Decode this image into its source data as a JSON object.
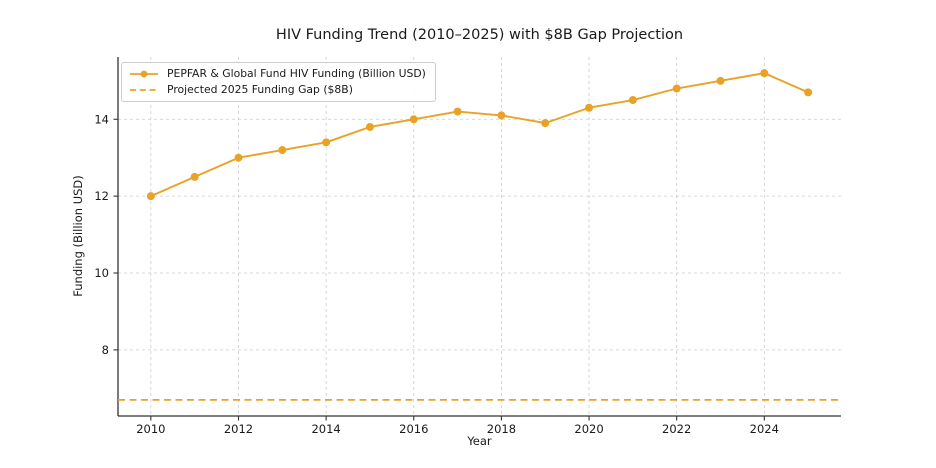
{
  "chart_data": {
    "type": "line",
    "title": "HIV Funding Trend (2010–2025) with $8B Gap Projection",
    "xlabel": "Year",
    "ylabel": "Funding (Billion USD)",
    "x": [
      2010,
      2011,
      2012,
      2013,
      2014,
      2015,
      2016,
      2017,
      2018,
      2019,
      2020,
      2021,
      2022,
      2023,
      2024,
      2025
    ],
    "series": [
      {
        "name": "PEPFAR & Global Fund HIV Funding (Billion USD)",
        "values": [
          12.0,
          12.5,
          13.0,
          13.2,
          13.4,
          13.8,
          14.0,
          14.2,
          14.1,
          13.9,
          14.3,
          14.5,
          14.8,
          15.0,
          15.2,
          14.7
        ],
        "line_style": "solid",
        "marker": "circle"
      }
    ],
    "gap_line": {
      "label": "Projected 2025 Funding Gap ($8B)",
      "value": 6.7,
      "line_style": "dashed"
    },
    "xlim": [
      2009.25,
      2025.75
    ],
    "ylim": [
      6.28,
      15.62
    ],
    "xticks": [
      2010,
      2012,
      2014,
      2016,
      2018,
      2020,
      2022,
      2024
    ],
    "yticks": [
      8,
      10,
      12,
      14
    ],
    "grid": true,
    "legend_position": "upper left",
    "colors": {
      "accent": "#e9a227",
      "grid": "#cccccc",
      "axis": "#333333",
      "text": "#1a1a1a"
    }
  }
}
